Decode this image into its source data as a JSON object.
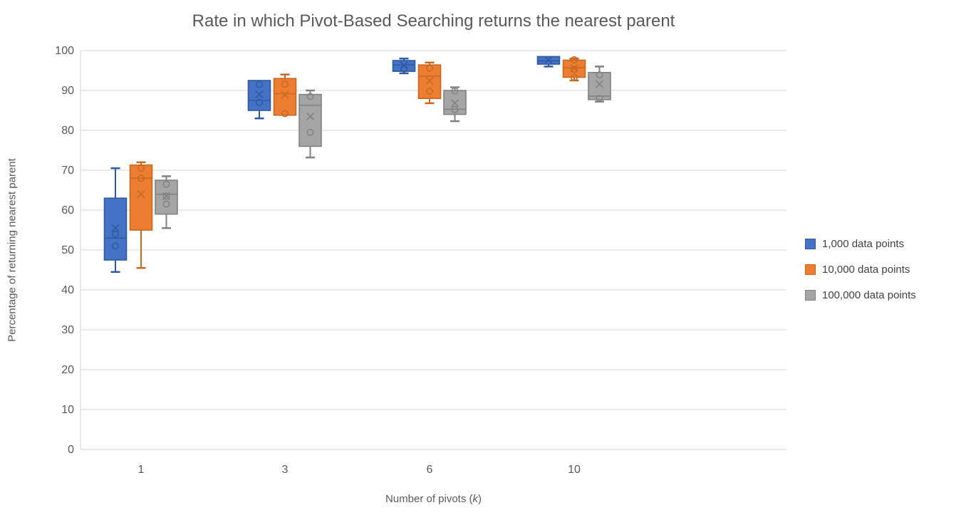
{
  "chart_data": {
    "type": "box",
    "title": "Rate in which Pivot-Based Searching returns the nearest parent",
    "xlabel": "Number of pivots (k)",
    "ylabel": "Percentage of returning nearest parent",
    "ylim": [
      0,
      100
    ],
    "y_ticks": [
      0,
      10,
      20,
      30,
      40,
      50,
      60,
      70,
      80,
      90,
      100
    ],
    "grid": true,
    "legend_position": "right",
    "categories": [
      "1",
      "3",
      "6",
      "10"
    ],
    "series": [
      {
        "name": "1,000 data points",
        "fill": "#4472C4",
        "stroke": "#2E5AA0",
        "boxes": [
          {
            "whisker_low": 44.5,
            "q1": 47.5,
            "median": 53,
            "mean": 55.5,
            "q3": 63,
            "whisker_high": 70.5,
            "points": [
              54,
              51
            ]
          },
          {
            "whisker_low": 83,
            "q1": 85,
            "median": 87.5,
            "mean": 89,
            "q3": 92.5,
            "whisker_high": 92.5,
            "points": [
              91.5,
              87
            ]
          },
          {
            "whisker_low": 94.3,
            "q1": 94.8,
            "median": 96.4,
            "mean": 96.3,
            "q3": 97.5,
            "whisker_high": 98,
            "points": [
              95.4
            ]
          },
          {
            "whisker_low": 96,
            "q1": 96.6,
            "median": 97.4,
            "mean": 97.6,
            "q3": 98.5,
            "whisker_high": 98.5,
            "points": []
          }
        ]
      },
      {
        "name": "10,000 data points",
        "fill": "#ED7D31",
        "stroke": "#C86820",
        "boxes": [
          {
            "whisker_low": 45.5,
            "q1": 55,
            "median": 68,
            "mean": 64,
            "q3": 71.3,
            "whisker_high": 72,
            "points": [
              70.5,
              68
            ]
          },
          {
            "whisker_low": 83.8,
            "q1": 83.8,
            "median": 89.2,
            "mean": 88.9,
            "q3": 93,
            "whisker_high": 94,
            "points": [
              91.6,
              84.2
            ]
          },
          {
            "whisker_low": 86.8,
            "q1": 88,
            "median": 93.6,
            "mean": 92.4,
            "q3": 96.4,
            "whisker_high": 97,
            "points": [
              95.6,
              89.8
            ]
          },
          {
            "whisker_low": 92.5,
            "q1": 93.3,
            "median": 95.7,
            "mean": 95.6,
            "q3": 97.6,
            "whisker_high": 98,
            "points": [
              97.7,
              95.3,
              93.3
            ]
          }
        ]
      },
      {
        "name": "100,000 data points",
        "fill": "#A5A5A5",
        "stroke": "#818181",
        "boxes": [
          {
            "whisker_low": 55.5,
            "q1": 59,
            "median": 64,
            "mean": 63.5,
            "q3": 67.5,
            "whisker_high": 68.5,
            "points": [
              66.5,
              63.5,
              61.5
            ]
          },
          {
            "whisker_low": 73.2,
            "q1": 76,
            "median": 86.3,
            "mean": 83.5,
            "q3": 89,
            "whisker_high": 90,
            "points": [
              88.5,
              79.5
            ]
          },
          {
            "whisker_low": 82.3,
            "q1": 84,
            "median": 85.3,
            "mean": 86.8,
            "q3": 90,
            "whisker_high": 90.8,
            "points": [
              89.9,
              85.2
            ]
          },
          {
            "whisker_low": 87.2,
            "q1": 87.7,
            "median": 88.6,
            "mean": 91.6,
            "q3": 94.5,
            "whisker_high": 96,
            "points": [
              93.9,
              88
            ]
          }
        ]
      }
    ]
  },
  "x_axis_title": {
    "prefix": "Number of pivots (",
    "variable": "k",
    "suffix": ")"
  },
  "legend": {
    "items": [
      "1,000 data points",
      "10,000 data points",
      "100,000 data points"
    ]
  },
  "colors": {
    "gridline": "#D9D9D9",
    "axis_line": "#D2D2D2",
    "tick_text": "#595959",
    "title_text": "#595959",
    "background": "#FFFFFF"
  }
}
